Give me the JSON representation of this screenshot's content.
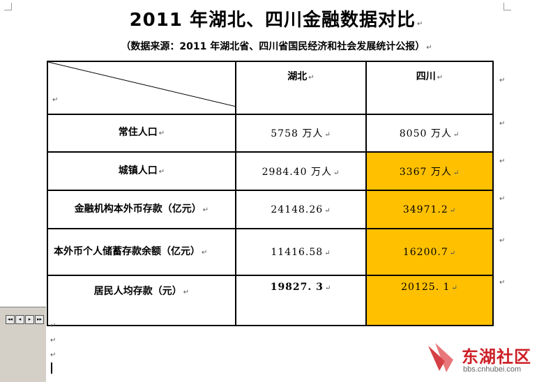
{
  "document": {
    "title": "2011 年湖北、四川金融数据对比",
    "subtitle": "（数据来源：2011 年湖北省、四川省国民经济和社会发展统计公报）",
    "paragraph_mark": "↵"
  },
  "table": {
    "headers": [
      "湖北",
      "四川"
    ],
    "rows": [
      {
        "label": "常住人口",
        "hubei": "5758 万人",
        "sichuan": "8050 万人",
        "highlight_sichuan": false
      },
      {
        "label": "城镇人口",
        "hubei": "2984.40 万人",
        "sichuan": "3367 万人",
        "highlight_sichuan": true
      },
      {
        "label": "金融机构本外币存款（亿元）",
        "hubei": "24148.26",
        "sichuan": "34971.2",
        "highlight_sichuan": true
      },
      {
        "label": "本外币个人储蓄存款余额（亿元）",
        "hubei": "11416.58",
        "sichuan": "16200.7",
        "highlight_sichuan": true
      },
      {
        "label": "居民人均存款（元）",
        "hubei": "19827. 3",
        "sichuan": "20125. 1",
        "highlight_sichuan": true
      }
    ],
    "highlight_color": "#ffc000"
  },
  "navigation": {
    "buttons": [
      "◂◂",
      "◂",
      "▸",
      "▸▸"
    ]
  },
  "watermark": {
    "name": "东湖社区",
    "url": "bbs.cnhubei.com",
    "color": "#cc1f25"
  }
}
